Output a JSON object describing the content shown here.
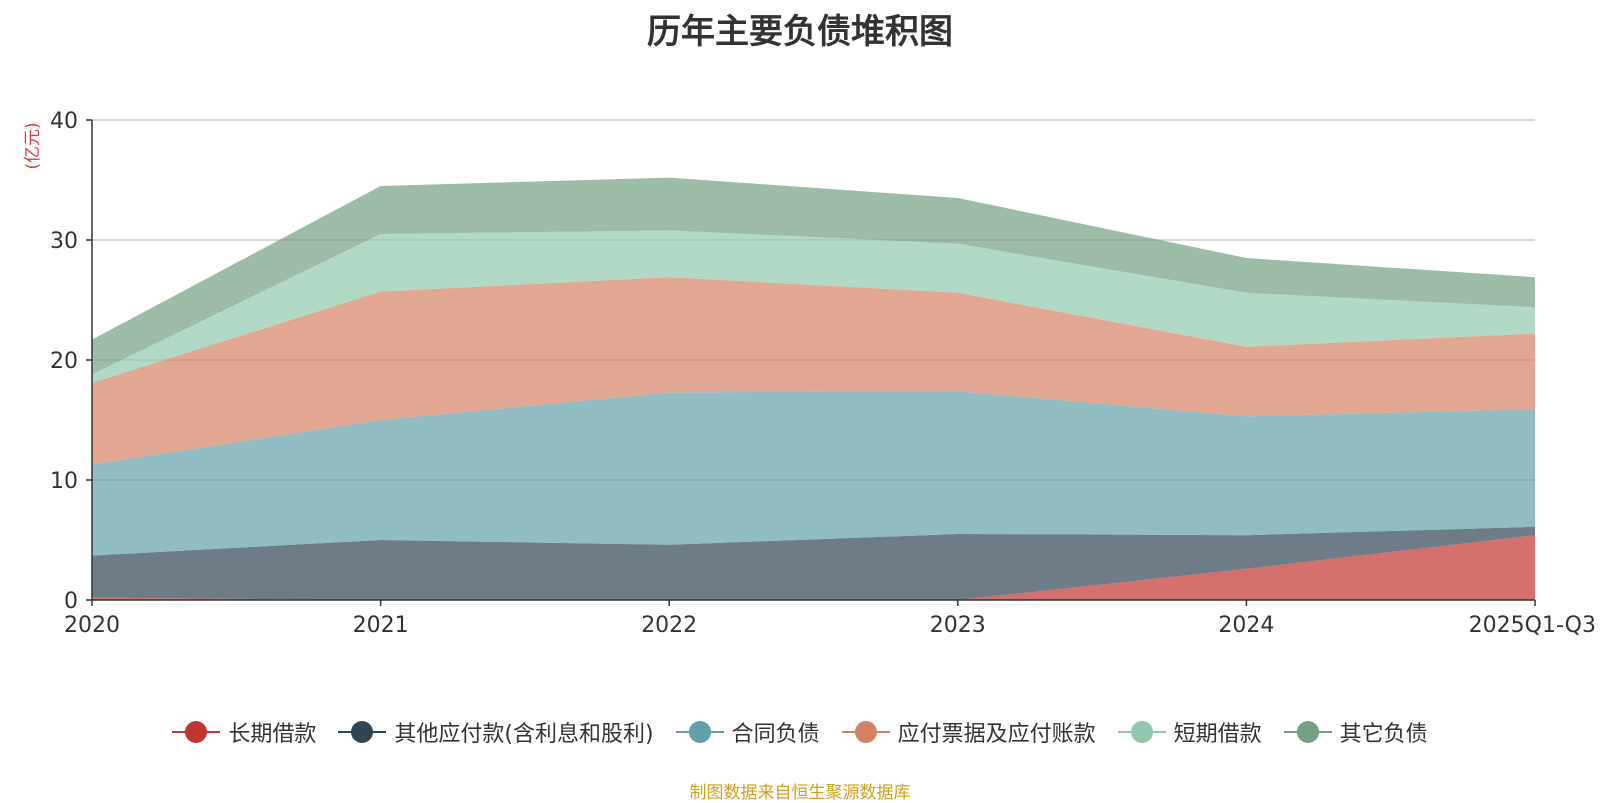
{
  "title": "历年主要负债堆积图",
  "source_note": "制图数据来自恒生聚源数据库",
  "chart_data": {
    "type": "area",
    "stacked": true,
    "title": "历年主要负债堆积图",
    "ylabel": "(亿元)",
    "xlabel": "",
    "ylim": [
      0,
      40
    ],
    "yticks": [
      0,
      10,
      20,
      30,
      40
    ],
    "categories": [
      "2020",
      "2021",
      "2022",
      "2023",
      "2024",
      "2025Q1-Q3"
    ],
    "grid": true,
    "legend_position": "bottom",
    "series": [
      {
        "name": "长期借款",
        "color": "#c23531",
        "values": [
          0.2,
          0,
          0,
          0,
          2.6,
          5.4
        ]
      },
      {
        "name": "其他应付款(含利息和股利)",
        "color": "#2f4554",
        "values": [
          3.5,
          5.0,
          4.6,
          5.5,
          2.8,
          0.7
        ]
      },
      {
        "name": "合同负债",
        "color": "#61a0a8",
        "values": [
          7.6,
          10.0,
          12.7,
          11.9,
          9.9,
          9.8
        ]
      },
      {
        "name": "应付票据及应付账款",
        "color": "#d48265",
        "values": [
          6.8,
          10.7,
          9.6,
          8.2,
          5.8,
          6.3
        ]
      },
      {
        "name": "短期借款",
        "color": "#91c7ae",
        "values": [
          0.7,
          4.8,
          3.9,
          4.1,
          4.5,
          2.2
        ]
      },
      {
        "name": "其它负债",
        "color": "#749f83",
        "values": [
          2.9,
          4.0,
          4.4,
          3.8,
          2.9,
          2.5
        ]
      }
    ]
  }
}
